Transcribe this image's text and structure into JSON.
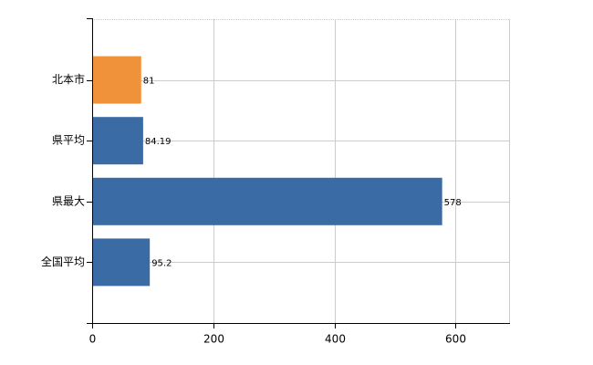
{
  "chart_data": {
    "type": "bar",
    "orientation": "horizontal",
    "categories": [
      "北本市",
      "県平均",
      "県最大",
      "全国平均"
    ],
    "values": [
      81,
      84.19,
      578,
      95.2
    ],
    "colors": [
      "#f0923a",
      "#3b6ba5",
      "#3b6ba5",
      "#3b6ba5"
    ],
    "xlim": [
      0,
      690
    ],
    "xticks": [
      0,
      200,
      400,
      600
    ],
    "grid": true
  }
}
